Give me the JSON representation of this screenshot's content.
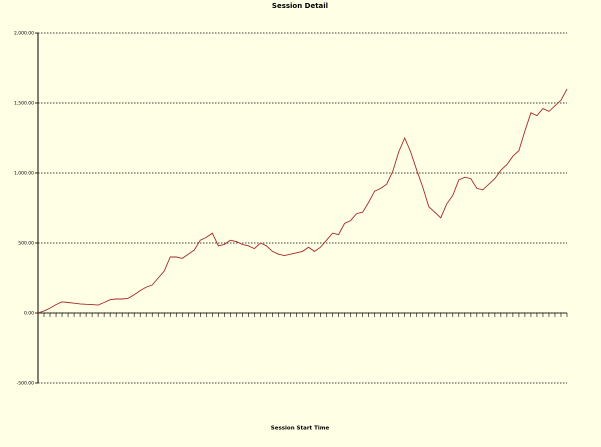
{
  "chart_data": {
    "type": "line",
    "title": "Session Detail",
    "x_label": "Session Start Time",
    "categories": [
      null,
      null,
      null,
      null,
      null,
      null,
      null,
      null,
      null,
      null,
      null,
      null,
      null,
      null,
      null,
      null,
      null,
      null,
      null,
      null,
      null,
      null,
      null,
      null,
      null,
      null,
      null,
      null,
      null,
      null,
      null,
      null,
      null,
      null,
      null,
      null,
      null,
      null,
      null,
      null,
      null,
      null,
      null,
      null,
      null,
      null,
      null,
      null,
      null,
      null,
      null,
      null,
      null,
      null,
      null,
      null,
      null,
      null,
      null,
      null,
      null,
      null,
      null,
      null,
      null,
      null,
      null,
      null,
      null,
      null,
      null,
      null,
      null,
      null,
      null,
      null,
      null,
      null,
      null,
      null,
      null,
      null,
      null,
      null,
      null,
      null,
      null,
      null,
      null
    ],
    "values": [
      0,
      15,
      35,
      60,
      80,
      75,
      70,
      65,
      62,
      60,
      57,
      75,
      95,
      100,
      100,
      105,
      130,
      160,
      185,
      200,
      250,
      300,
      400,
      400,
      390,
      420,
      450,
      520,
      540,
      570,
      480,
      490,
      520,
      510,
      490,
      480,
      460,
      500,
      480,
      440,
      420,
      410,
      420,
      430,
      440,
      470,
      440,
      470,
      520,
      570,
      560,
      640,
      660,
      710,
      720,
      790,
      870,
      890,
      920,
      1010,
      1150,
      1250,
      1150,
      1020,
      900,
      760,
      720,
      680,
      780,
      840,
      950,
      970,
      960,
      890,
      880,
      920,
      960,
      1020,
      1060,
      1120,
      1160,
      1300,
      1430,
      1410,
      1460,
      1440,
      1480,
      1520,
      1600
    ],
    "color": "#a52a2a",
    "ylim": [
      -500,
      2000
    ],
    "yticks": [
      {
        "value": -500,
        "label": "-500.00"
      },
      {
        "value": 0,
        "label": "0.00"
      },
      {
        "value": 500,
        "label": "500.00"
      },
      {
        "value": 1000,
        "label": "1,000.00"
      },
      {
        "value": 1500,
        "label": "1,500.00"
      },
      {
        "value": 2000,
        "label": "2,000.00"
      }
    ],
    "grid": true
  }
}
